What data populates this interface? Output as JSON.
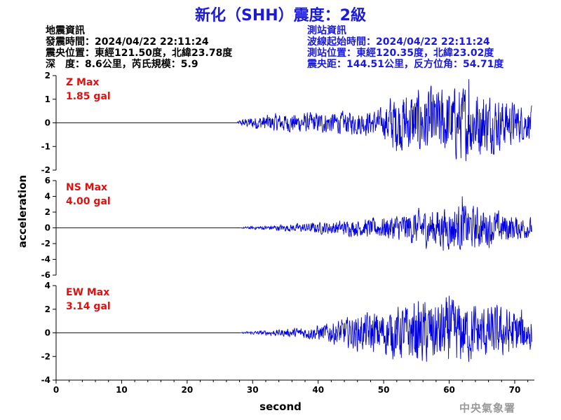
{
  "title": "新化（SHH）震度：2級",
  "earthquake_info": {
    "heading": "地震資訊",
    "time": "發震時間：2024/04/22 22:11:24",
    "epicenter": "震央位置：東經121.50度，北緯23.78度",
    "depth_magnitude": "深　度：8.6公里，芮氏規模：5.9"
  },
  "station_info": {
    "heading": "測站資訊",
    "wave_start": "波線起始時間：2024/04/22 22:11:24",
    "location": "測站位置：東經120.35度，北緯23.02度",
    "distance": "震央距：144.51公里，反方位角：54.71度"
  },
  "credit": "中央氣象署",
  "chart_data": {
    "type": "line",
    "xlabel": "second",
    "ylabel": "acceleration",
    "xlim": [
      0,
      73
    ],
    "xticks": [
      0,
      10,
      20,
      30,
      40,
      50,
      60,
      70
    ],
    "grid": false,
    "series_color": "#0000e0",
    "label_color": "#e01010",
    "panels": [
      {
        "component": "Z",
        "max_label": "Z Max",
        "max_value_label": "1.85 gal",
        "peak": 1.85,
        "ylim": [
          -2,
          2
        ],
        "yticks": [
          -2,
          -1,
          0,
          1,
          2
        ],
        "approx_envelope": [
          {
            "t": 0,
            "amp": 0.0
          },
          {
            "t": 27.5,
            "amp": 0.0
          },
          {
            "t": 28,
            "amp": 0.12
          },
          {
            "t": 30,
            "amp": 0.25
          },
          {
            "t": 33,
            "amp": 0.35
          },
          {
            "t": 38,
            "amp": 0.4
          },
          {
            "t": 45,
            "amp": 0.45
          },
          {
            "t": 50,
            "amp": 0.55
          },
          {
            "t": 51,
            "amp": 1.1
          },
          {
            "t": 55,
            "amp": 1.3
          },
          {
            "t": 60,
            "amp": 1.4
          },
          {
            "t": 63,
            "amp": 1.5
          },
          {
            "t": 68,
            "amp": 1.0
          },
          {
            "t": 72.5,
            "amp": 0.6
          }
        ]
      },
      {
        "component": "NS",
        "max_label": "NS Max",
        "max_value_label": "4.00 gal",
        "peak": 4.0,
        "ylim": [
          -6,
          6
        ],
        "yticks": [
          -6,
          -4,
          -2,
          0,
          2,
          4,
          6
        ],
        "approx_envelope": [
          {
            "t": 0,
            "amp": 0.0
          },
          {
            "t": 28,
            "amp": 0.0
          },
          {
            "t": 29,
            "amp": 0.15
          },
          {
            "t": 35,
            "amp": 0.4
          },
          {
            "t": 42,
            "amp": 0.8
          },
          {
            "t": 48,
            "amp": 1.1
          },
          {
            "t": 52,
            "amp": 1.6
          },
          {
            "t": 56,
            "amp": 2.2
          },
          {
            "t": 62,
            "amp": 2.8
          },
          {
            "t": 65,
            "amp": 2.4
          },
          {
            "t": 70,
            "amp": 1.5
          },
          {
            "t": 72.5,
            "amp": 1.2
          }
        ]
      },
      {
        "component": "EW",
        "max_label": "EW Max",
        "max_value_label": "3.14 gal",
        "peak": 3.14,
        "ylim": [
          -4,
          4
        ],
        "yticks": [
          -4,
          -2,
          0,
          2,
          4
        ],
        "approx_envelope": [
          {
            "t": 0,
            "amp": 0.0
          },
          {
            "t": 28,
            "amp": 0.0
          },
          {
            "t": 29,
            "amp": 0.1
          },
          {
            "t": 35,
            "amp": 0.3
          },
          {
            "t": 40,
            "amp": 0.6
          },
          {
            "t": 46,
            "amp": 1.4
          },
          {
            "t": 50,
            "amp": 1.8
          },
          {
            "t": 55,
            "amp": 2.5
          },
          {
            "t": 60,
            "amp": 2.6
          },
          {
            "t": 65,
            "amp": 2.2
          },
          {
            "t": 70,
            "amp": 1.9
          },
          {
            "t": 72.5,
            "amp": 1.6
          }
        ]
      }
    ]
  }
}
